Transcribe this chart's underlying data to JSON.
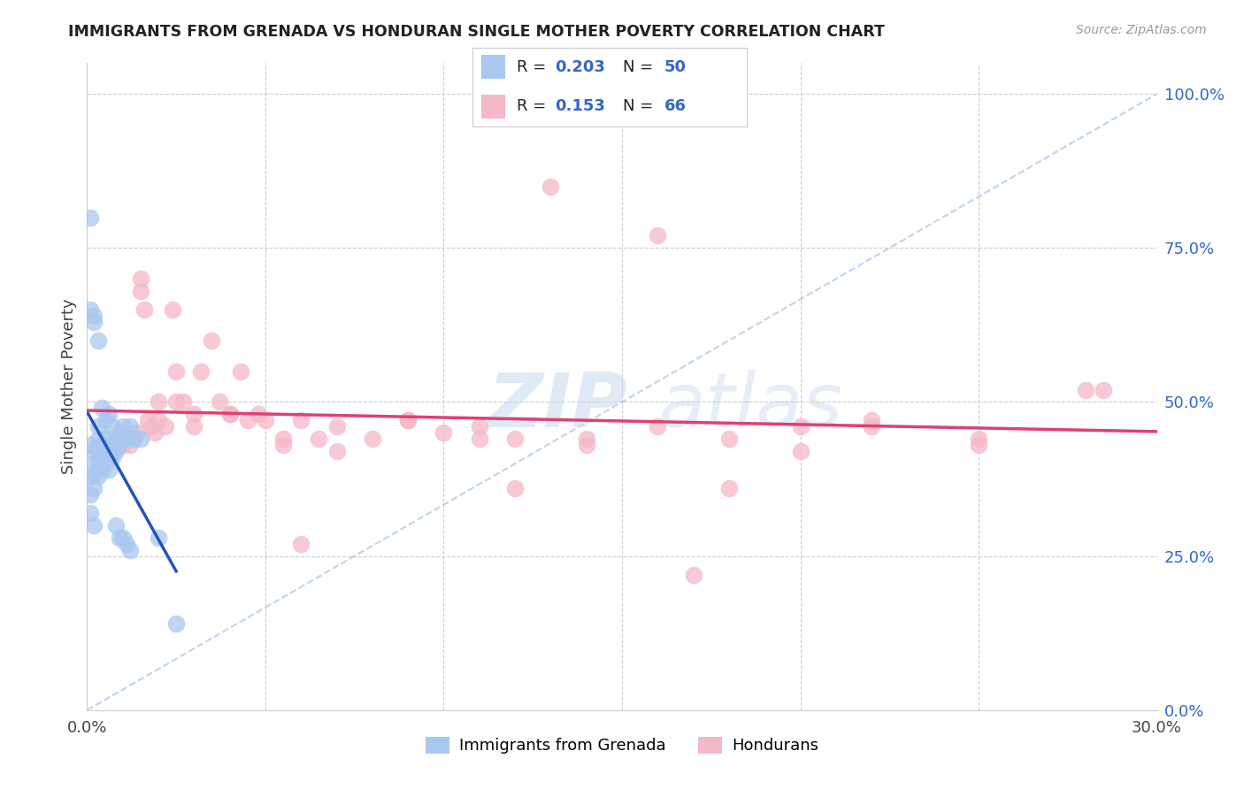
{
  "title": "IMMIGRANTS FROM GRENADA VS HONDURAN SINGLE MOTHER POVERTY CORRELATION CHART",
  "source": "Source: ZipAtlas.com",
  "ylabel": "Single Mother Poverty",
  "xmin": 0.0,
  "xmax": 0.3,
  "ymin": 0.0,
  "ymax": 1.05,
  "right_yticks": [
    0.0,
    0.25,
    0.5,
    0.75,
    1.0
  ],
  "right_yticklabels": [
    "0.0%",
    "25.0%",
    "50.0%",
    "75.0%",
    "100.0%"
  ],
  "xticks": [
    0.0,
    0.05,
    0.1,
    0.15,
    0.2,
    0.25,
    0.3
  ],
  "color_blue": "#a8c8f0",
  "color_pink": "#f4b8c8",
  "color_trend_blue": "#2255bb",
  "color_trend_pink": "#e04070",
  "color_diagonal": "#b0c8e8",
  "watermark_zip": "ZIP",
  "watermark_atlas": "atlas",
  "legend_r1_label": "R = ",
  "legend_r1_val": "0.203",
  "legend_r1_n_label": "  N = ",
  "legend_r1_n_val": "50",
  "legend_r2_label": "R = ",
  "legend_r2_val": "0.153",
  "legend_r2_n_label": "  N = ",
  "legend_r2_n_val": "66",
  "scatter_blue_x": [
    0.001,
    0.001,
    0.001,
    0.001,
    0.002,
    0.002,
    0.002,
    0.002,
    0.002,
    0.003,
    0.003,
    0.003,
    0.003,
    0.004,
    0.004,
    0.004,
    0.005,
    0.005,
    0.005,
    0.006,
    0.006,
    0.006,
    0.007,
    0.007,
    0.008,
    0.008,
    0.009,
    0.01,
    0.01,
    0.011,
    0.012,
    0.013,
    0.015,
    0.02,
    0.001,
    0.001,
    0.002,
    0.002,
    0.003,
    0.003,
    0.004,
    0.005,
    0.006,
    0.007,
    0.008,
    0.009,
    0.01,
    0.011,
    0.012,
    0.025
  ],
  "scatter_blue_y": [
    0.43,
    0.38,
    0.35,
    0.32,
    0.42,
    0.4,
    0.38,
    0.36,
    0.3,
    0.44,
    0.42,
    0.4,
    0.38,
    0.43,
    0.41,
    0.39,
    0.44,
    0.42,
    0.4,
    0.43,
    0.41,
    0.39,
    0.43,
    0.41,
    0.44,
    0.42,
    0.43,
    0.46,
    0.44,
    0.44,
    0.46,
    0.44,
    0.44,
    0.28,
    0.65,
    0.8,
    0.64,
    0.63,
    0.6,
    0.46,
    0.49,
    0.47,
    0.48,
    0.46,
    0.3,
    0.28,
    0.28,
    0.27,
    0.26,
    0.14
  ],
  "scatter_pink_x": [
    0.005,
    0.006,
    0.007,
    0.008,
    0.009,
    0.01,
    0.011,
    0.012,
    0.013,
    0.014,
    0.015,
    0.016,
    0.017,
    0.018,
    0.019,
    0.02,
    0.022,
    0.024,
    0.025,
    0.027,
    0.03,
    0.032,
    0.035,
    0.037,
    0.04,
    0.043,
    0.045,
    0.048,
    0.05,
    0.055,
    0.06,
    0.065,
    0.07,
    0.08,
    0.09,
    0.1,
    0.11,
    0.12,
    0.14,
    0.16,
    0.18,
    0.2,
    0.22,
    0.25,
    0.28,
    0.01,
    0.015,
    0.02,
    0.025,
    0.03,
    0.04,
    0.055,
    0.07,
    0.09,
    0.11,
    0.14,
    0.17,
    0.2,
    0.25,
    0.13,
    0.16,
    0.22,
    0.18,
    0.12,
    0.06,
    0.285
  ],
  "scatter_pink_y": [
    0.43,
    0.42,
    0.44,
    0.43,
    0.45,
    0.43,
    0.44,
    0.43,
    0.44,
    0.45,
    0.7,
    0.65,
    0.47,
    0.46,
    0.45,
    0.47,
    0.46,
    0.65,
    0.55,
    0.5,
    0.46,
    0.55,
    0.6,
    0.5,
    0.48,
    0.55,
    0.47,
    0.48,
    0.47,
    0.44,
    0.47,
    0.44,
    0.46,
    0.44,
    0.47,
    0.45,
    0.46,
    0.44,
    0.43,
    0.46,
    0.44,
    0.46,
    0.47,
    0.44,
    0.52,
    0.43,
    0.68,
    0.5,
    0.5,
    0.48,
    0.48,
    0.43,
    0.42,
    0.47,
    0.44,
    0.44,
    0.22,
    0.42,
    0.43,
    0.85,
    0.77,
    0.46,
    0.36,
    0.36,
    0.27,
    0.52
  ]
}
